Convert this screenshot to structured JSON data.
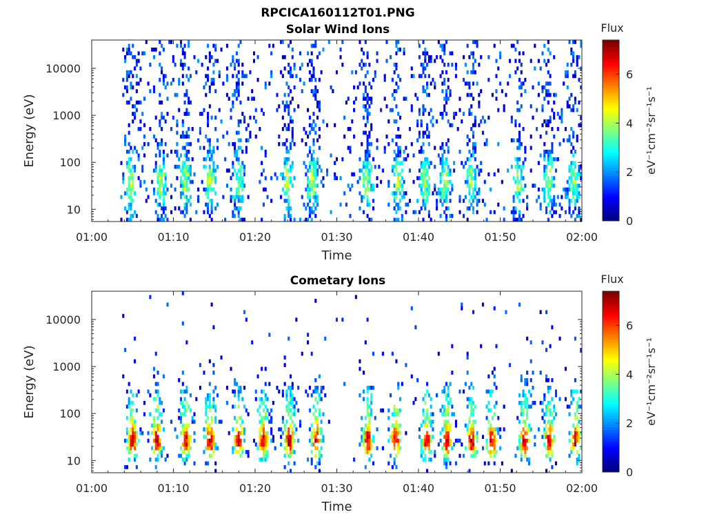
{
  "figure_title": "RPCICA160112T01.PNG",
  "chart_data": [
    {
      "type": "heatmap",
      "title": "Solar Wind Ions",
      "xlabel": "Time",
      "ylabel": "Energy (eV)",
      "x_ticks": [
        "01:00",
        "01:10",
        "01:20",
        "01:30",
        "01:40",
        "01:50",
        "02:00"
      ],
      "xlim_minutes": [
        0,
        60
      ],
      "y_scale": "log",
      "y_ticks": [
        10,
        100,
        1000,
        10000
      ],
      "y_tick_labels": [
        "10",
        "100",
        "1000",
        "10000"
      ],
      "ylim": [
        5.5,
        40000
      ],
      "colorbar": {
        "title": "Flux",
        "label": "eV⁻¹cm⁻²sr⁻¹s⁻¹",
        "ticks": [
          0,
          2,
          4,
          6
        ],
        "tick_labels": [
          "0",
          "2",
          "4",
          "6"
        ],
        "range": [
          0,
          7.4
        ],
        "colormap": "jet"
      },
      "data_start_minute": 3.5,
      "data_end_minute": 60,
      "bursts_minutes": [
        4.8,
        8.5,
        11.5,
        14.5,
        18.0,
        24.0,
        27.0,
        33.7,
        37.5,
        40.8,
        43.2,
        46.5,
        52.2,
        56.0,
        59.0
      ],
      "level_profile": "low_flux_broad_energy",
      "grid": false,
      "legend": "right"
    },
    {
      "type": "heatmap",
      "title": "Cometary Ions",
      "xlabel": "Time",
      "ylabel": "Energy (eV)",
      "x_ticks": [
        "01:00",
        "01:10",
        "01:20",
        "01:30",
        "01:40",
        "01:50",
        "02:00"
      ],
      "xlim_minutes": [
        0,
        60
      ],
      "y_scale": "log",
      "y_ticks": [
        10,
        100,
        1000,
        10000
      ],
      "y_tick_labels": [
        "10",
        "100",
        "1000",
        "10000"
      ],
      "ylim": [
        5.5,
        40000
      ],
      "colorbar": {
        "title": "Flux",
        "label": "eV⁻¹cm⁻²sr⁻¹s⁻¹",
        "ticks": [
          0,
          2,
          4,
          6
        ],
        "tick_labels": [
          "0",
          "2",
          "4",
          "6"
        ],
        "range": [
          0,
          7.4
        ],
        "colormap": "jet"
      },
      "data_start_minute": 3.5,
      "data_end_minute": 60,
      "bursts_minutes": [
        5.0,
        8.0,
        11.5,
        14.5,
        18.0,
        21.0,
        24.2,
        27.5,
        33.8,
        37.2,
        41.0,
        43.5,
        46.5,
        49.0,
        53.0,
        56.0,
        59.2
      ],
      "level_profile": "high_flux_low_energy",
      "grid": false,
      "legend": "right"
    }
  ]
}
